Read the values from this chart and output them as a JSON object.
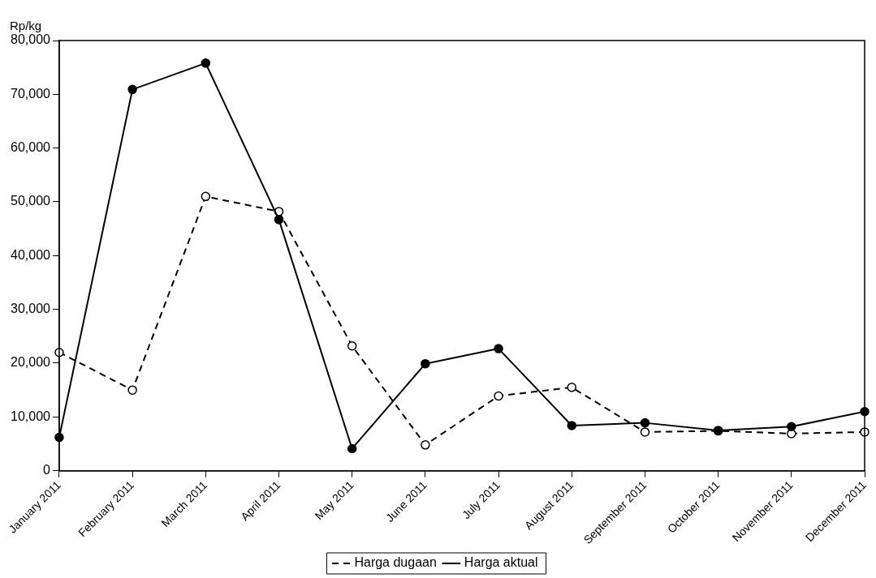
{
  "chart_data": {
    "type": "line",
    "ylabel": "Rp/kg",
    "categories": [
      "January 2011",
      "February 2011",
      "March 2011",
      "April 2011",
      "May 2011",
      "June 2011",
      "July 2011",
      "August 2011",
      "September 2011",
      "October 2011",
      "November 2011",
      "December 2011"
    ],
    "series": [
      {
        "name": "Harga dugaan",
        "color": "#000000",
        "line_style": "dashed",
        "values": [
          22000,
          15000,
          51000,
          48200,
          23200,
          4800,
          13900,
          15500,
          7200,
          7400,
          6900,
          7200
        ]
      },
      {
        "name": "Harga aktual",
        "color": "#000000",
        "line_style": "solid",
        "values": [
          6200,
          70900,
          75800,
          46700,
          4100,
          19900,
          22700,
          8400,
          8900,
          7500,
          8200,
          11000
        ]
      }
    ],
    "ylim": [
      0,
      80000
    ],
    "yticks": [
      {
        "value": 0,
        "label": "0"
      },
      {
        "value": 10000,
        "label": "10,000"
      },
      {
        "value": 20000,
        "label": "20,000"
      },
      {
        "value": 30000,
        "label": "30,000"
      },
      {
        "value": 40000,
        "label": "40,000"
      },
      {
        "value": 50000,
        "label": "50,000"
      },
      {
        "value": 60000,
        "label": "60,000"
      },
      {
        "value": 70000,
        "label": "70,000"
      },
      {
        "value": 80000,
        "label": "80,000"
      }
    ],
    "grid": false,
    "legend": "bottom",
    "marker": "circle"
  }
}
